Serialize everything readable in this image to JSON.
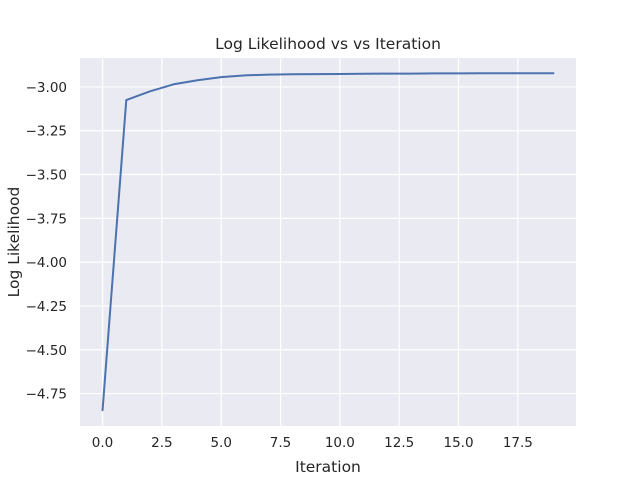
{
  "chart_data": {
    "type": "line",
    "title": "Log Likelihood vs vs Iteration",
    "xlabel": "Iteration",
    "ylabel": "Log Likelihood",
    "xlim": [
      -0.95,
      19.95
    ],
    "ylim": [
      -4.935,
      -2.835
    ],
    "xticks": [
      0.0,
      2.5,
      5.0,
      7.5,
      10.0,
      12.5,
      15.0,
      17.5
    ],
    "xtick_labels": [
      "0.0",
      "2.5",
      "5.0",
      "7.5",
      "10.0",
      "12.5",
      "15.0",
      "17.5"
    ],
    "yticks": [
      -3.0,
      -3.25,
      -3.5,
      -3.75,
      -4.0,
      -4.25,
      -4.5,
      -4.75
    ],
    "ytick_labels": [
      "−3.00",
      "−3.25",
      "−3.50",
      "−3.75",
      "−4.00",
      "−4.25",
      "−4.50",
      "−4.75"
    ],
    "grid": true,
    "background": "#eaeaf2",
    "grid_color": "#ffffff",
    "series": [
      {
        "color": "#4c72b0",
        "x": [
          0,
          1,
          2,
          3,
          4,
          5,
          6,
          7,
          8,
          9,
          10,
          11,
          12,
          13,
          14,
          15,
          16,
          17,
          18,
          19
        ],
        "y": [
          -4.845,
          -3.075,
          -3.025,
          -2.985,
          -2.962,
          -2.944,
          -2.934,
          -2.93,
          -2.928,
          -2.927,
          -2.926,
          -2.925,
          -2.924,
          -2.924,
          -2.923,
          -2.923,
          -2.922,
          -2.922,
          -2.922,
          -2.922
        ]
      }
    ]
  }
}
